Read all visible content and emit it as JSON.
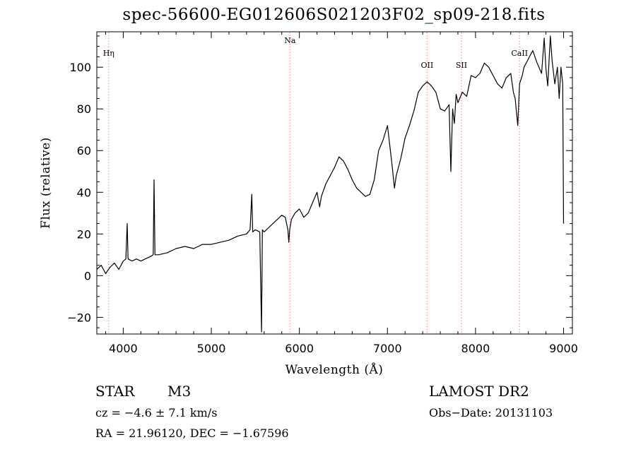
{
  "chart_data": {
    "type": "line",
    "title": "spec-56600-EG012606S021203F02_sp09-218.fits",
    "xlabel": "Wavelength (Å)",
    "ylabel": "Flux (relative)",
    "xlim": [
      3700,
      9100
    ],
    "ylim": [
      -28,
      117
    ],
    "xticks": [
      4000,
      5000,
      6000,
      7000,
      8000,
      9000
    ],
    "yticks": [
      -20,
      0,
      20,
      40,
      60,
      80,
      100
    ],
    "grid": false,
    "line_color": "#000000",
    "marker_color": "#e06060",
    "line_markers": [
      {
        "label": "Hη",
        "x": 3835
      },
      {
        "label": "Na",
        "x": 5893
      },
      {
        "label": "OII",
        "x": 7450
      },
      {
        "label": "SII",
        "x": 7840
      },
      {
        "label": "CaII",
        "x": 8500
      }
    ],
    "series": [
      {
        "x": [
          3700,
          3750,
          3800,
          3850,
          3900,
          3950,
          4000,
          4030,
          4045,
          4055,
          4100,
          4150,
          4200,
          4250,
          4300,
          4340,
          4350,
          4360,
          4400,
          4500,
          4600,
          4700,
          4800,
          4900,
          5000,
          5100,
          5200,
          5300,
          5400,
          5440,
          5460,
          5470,
          5500,
          5550,
          5570,
          5580,
          5600,
          5650,
          5700,
          5750,
          5800,
          5840,
          5870,
          5880,
          5890,
          5910,
          5950,
          6000,
          6050,
          6100,
          6150,
          6200,
          6230,
          6250,
          6300,
          6350,
          6400,
          6450,
          6500,
          6550,
          6600,
          6650,
          6700,
          6750,
          6800,
          6850,
          6900,
          6950,
          7000,
          7050,
          7080,
          7100,
          7150,
          7200,
          7250,
          7300,
          7350,
          7400,
          7450,
          7500,
          7550,
          7600,
          7650,
          7700,
          7720,
          7740,
          7760,
          7780,
          7800,
          7850,
          7900,
          7950,
          8000,
          8050,
          8100,
          8150,
          8200,
          8250,
          8300,
          8350,
          8400,
          8430,
          8450,
          8480,
          8500,
          8530,
          8550,
          8600,
          8650,
          8700,
          8750,
          8780,
          8800,
          8820,
          8850,
          8870,
          8900,
          8930,
          8950,
          8970,
          8990,
          9000
        ],
        "y": [
          3,
          5,
          1,
          4,
          6,
          3,
          7,
          8,
          25,
          8,
          7,
          8,
          7,
          8,
          9,
          10,
          46,
          10,
          10,
          11,
          13,
          14,
          13,
          15,
          15,
          16,
          17,
          19,
          20,
          22,
          39,
          21,
          22,
          21,
          -27,
          22,
          21,
          23,
          25,
          27,
          29,
          28,
          22,
          16,
          22,
          27,
          30,
          32,
          28,
          30,
          35,
          40,
          33,
          38,
          44,
          48,
          52,
          57,
          55,
          51,
          46,
          42,
          40,
          38,
          39,
          46,
          60,
          65,
          72,
          54,
          42,
          48,
          56,
          66,
          72,
          79,
          88,
          91,
          93,
          91,
          88,
          80,
          79,
          82,
          50,
          80,
          73,
          87,
          83,
          88,
          86,
          96,
          95,
          97,
          102,
          100,
          96,
          92,
          90,
          95,
          97,
          88,
          85,
          72,
          92,
          96,
          100,
          104,
          108,
          102,
          97,
          114,
          99,
          91,
          115,
          103,
          92,
          100,
          85,
          100,
          92,
          25
        ]
      }
    ]
  },
  "info": {
    "object_type": "STAR",
    "subclass": "M3",
    "survey": "LAMOST DR2",
    "cz": "cz = −4.6 ± 7.1 km/s",
    "obs_date": "Obs−Date: 20131103",
    "coords": "RA =  21.96120, DEC =  −1.67596"
  }
}
